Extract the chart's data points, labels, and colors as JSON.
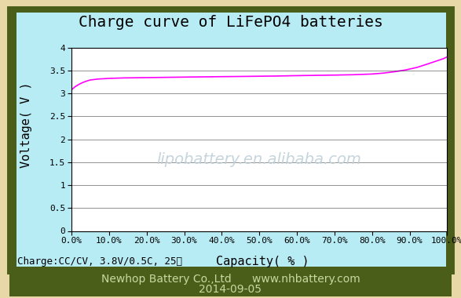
{
  "title": "Charge curve of LiFePO4 batteries",
  "xlabel": "Capacity( % )",
  "ylabel": "Voltage( V )",
  "xlim": [
    0,
    100
  ],
  "ylim": [
    0,
    4
  ],
  "yticks": [
    0,
    0.5,
    1,
    1.5,
    2,
    2.5,
    3,
    3.5,
    4
  ],
  "xtick_labels": [
    "0.0%",
    "10.0%",
    "20.0%",
    "30.0%",
    "40.0%",
    "50.0%",
    "60.0%",
    "70.0%",
    "80.0%",
    "90.0%",
    "100.0%"
  ],
  "line_color": "#ff00ff",
  "plot_bg": "#ffffff",
  "inner_bg": "#b8ecf5",
  "outer_border_color": "#4a5e1a",
  "outer_bg": "#e8d8a8",
  "footer_bg": "#4a5e1a",
  "watermark": "lipobattery.en.alibaba.com",
  "watermark_color": "#c0d0d8",
  "charge_label": "Charge:CC/CV, 3.8V/0.5C, 25℃",
  "footer_line1": "Newhop Battery Co.,Ltd      www.nhbattery.com",
  "footer_line2": "2014-09-05",
  "footer_text_color": "#c8d8a0",
  "title_fontsize": 14,
  "axis_label_fontsize": 11,
  "tick_fontsize": 8,
  "watermark_fontsize": 14,
  "charge_label_fontsize": 9,
  "footer_fontsize": 10
}
